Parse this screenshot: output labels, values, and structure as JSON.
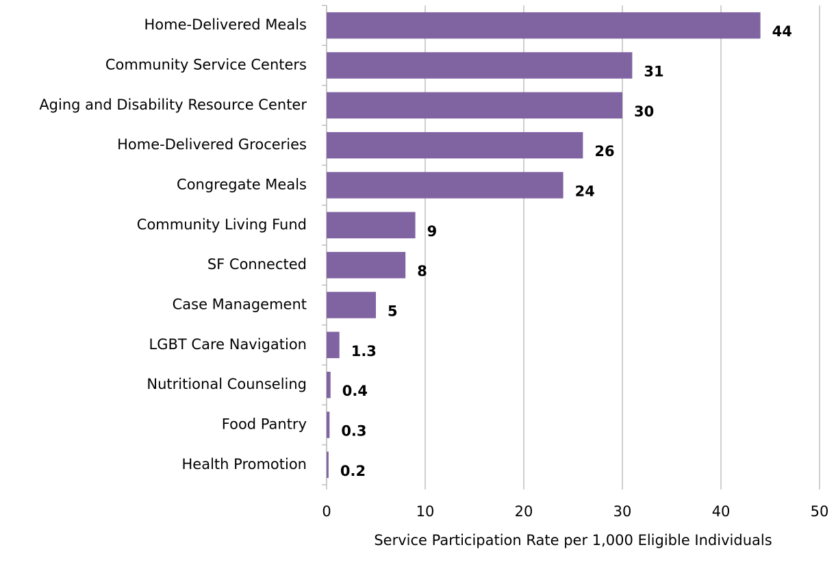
{
  "chart_data": {
    "type": "bar",
    "orientation": "horizontal",
    "x_label": "Service Participation Rate per 1,000 Eligible Individuals",
    "categories": [
      "Home-Delivered Meals",
      "Community Service Centers",
      "Aging and Disability Resource Center",
      "Home-Delivered Groceries",
      "Congregate Meals",
      "Community Living Fund",
      "SF Connected",
      "Case Management",
      "LGBT Care Navigation",
      "Nutritional Counseling",
      "Food Pantry",
      "Health Promotion"
    ],
    "values": [
      44,
      31,
      30,
      26,
      24,
      9,
      8,
      5,
      1.3,
      0.4,
      0.3,
      0.2
    ],
    "color": "#8064a2",
    "xlim": [
      0,
      50
    ],
    "xticks": [
      0,
      10,
      20,
      30,
      40,
      50
    ],
    "grid": true
  }
}
